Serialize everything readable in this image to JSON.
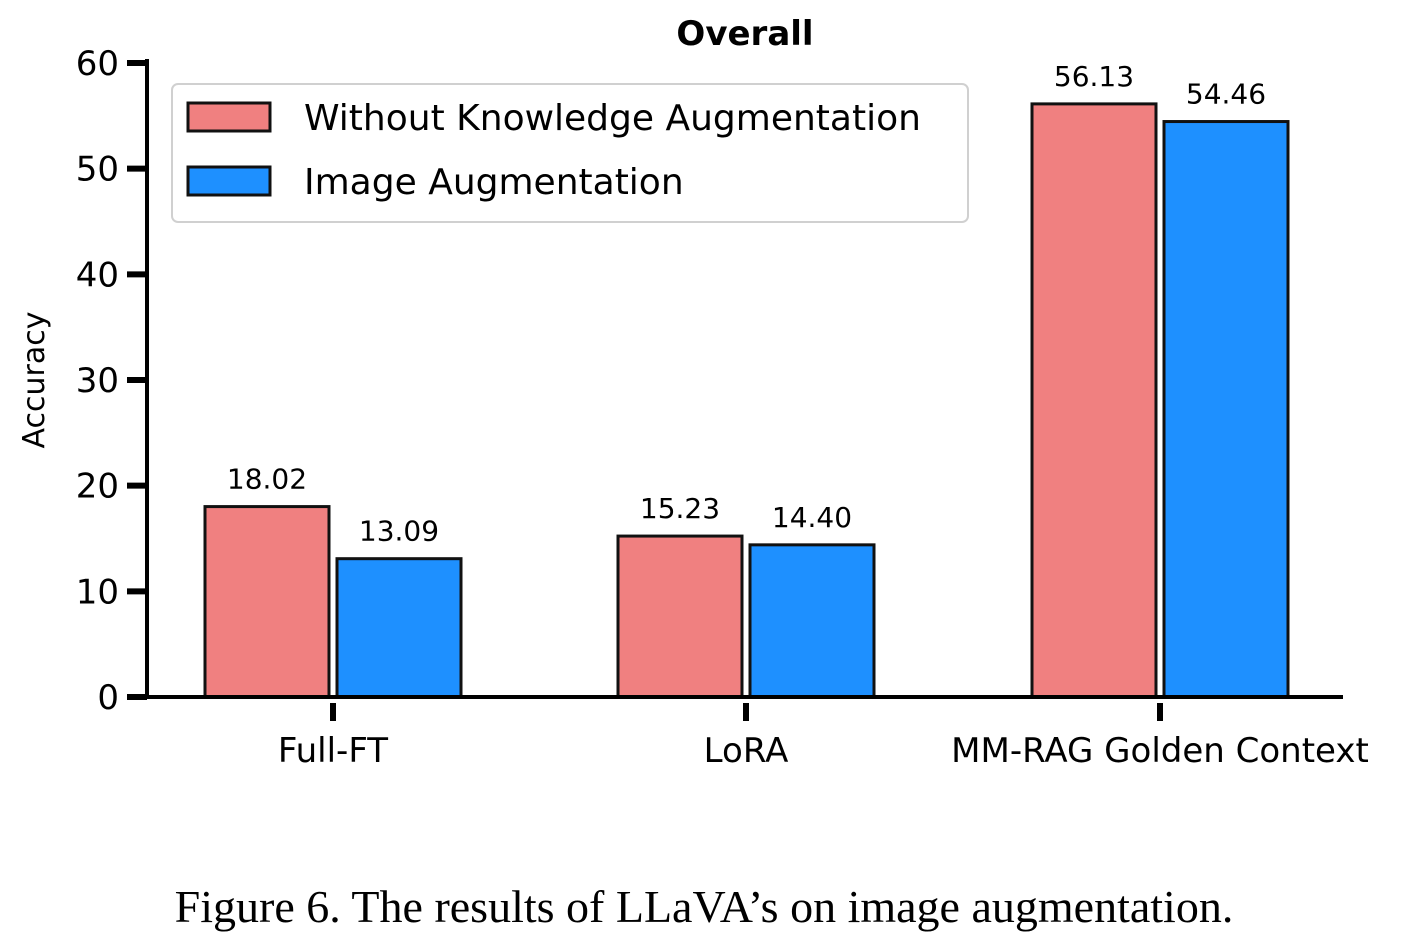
{
  "chart_data": {
    "type": "bar",
    "title": "Overall",
    "ylabel": "Accuracy",
    "xlabel": "",
    "ylim": [
      0,
      60
    ],
    "yticks": [
      0,
      10,
      20,
      30,
      40,
      50,
      60
    ],
    "categories": [
      "Full-FT",
      "LoRA",
      "MM-RAG Golden Context"
    ],
    "series": [
      {
        "name": "Without Knowledge Augmentation",
        "color": "#f08080",
        "values": [
          18.02,
          15.23,
          56.13
        ],
        "labels": [
          "18.02",
          "15.23",
          "56.13"
        ]
      },
      {
        "name": "Image Augmentation",
        "color": "#1e90ff",
        "values": [
          13.09,
          14.4,
          54.46
        ],
        "labels": [
          "13.09",
          "14.40",
          "54.46"
        ]
      }
    ],
    "legend": "top-left",
    "grid": false
  },
  "caption": "Figure 6. The results of LLaVA’s on image augmentation."
}
